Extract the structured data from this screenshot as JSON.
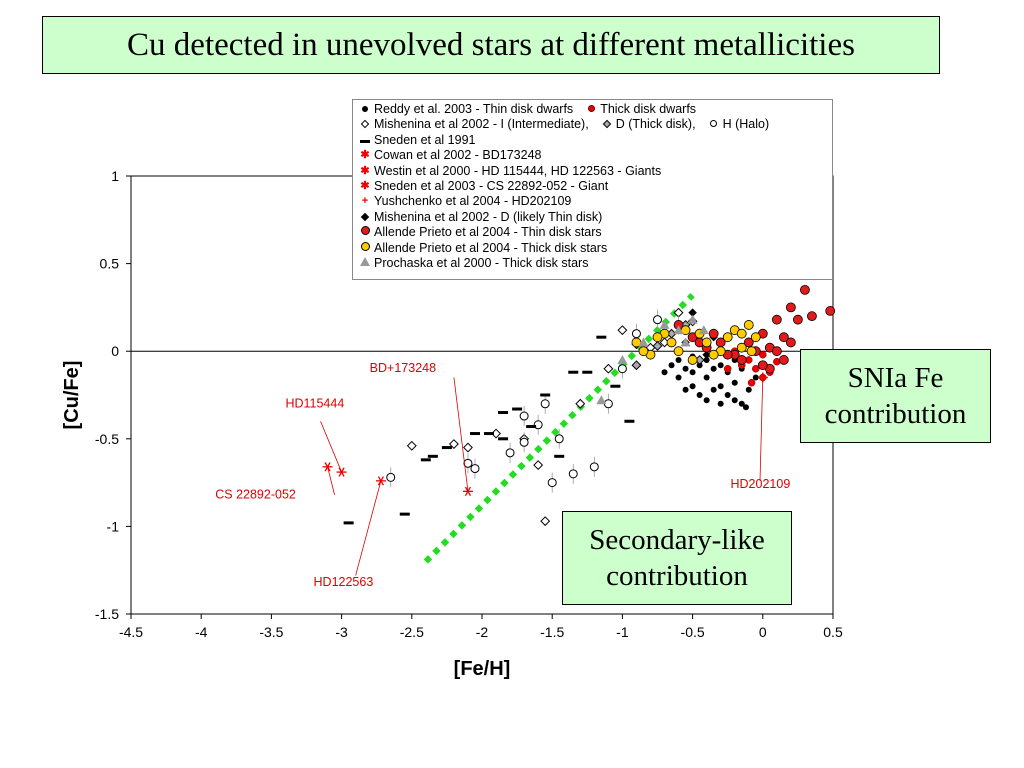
{
  "title": "Cu detected in unevolved stars at different metallicities",
  "notes": {
    "snia": [
      "SNIa Fe",
      "contribution"
    ],
    "secondary": [
      "Secondary-like",
      "contribution"
    ]
  },
  "legend": {
    "r1a": "Reddy et al. 2003 - Thin disk dwarfs",
    "r1b": "Thick disk dwarfs",
    "r2a": "Mishenina et al 2002 - I (Intermediate),",
    "r2b": "D (Thick disk),",
    "r2c": "H (Halo)",
    "r3": "Sneden et al 1991",
    "r4": "Cowan et al 2002 - BD173248",
    "r5": "Westin et al 2000 - HD 115444, HD 122563 - Giants",
    "r6": "Sneden et al 2003 - CS 22892-052 - Giant",
    "r7": "Yushchenko et al 2004 - HD202109",
    "r8": "Mishenina et al 2002 - D (likely Thin disk)",
    "r9": "Allende Prieto et al 2004 - Thin disk stars",
    "r10": "Allende Prieto et al 2004 - Thick disk stars",
    "r11": "Prochaska et al 2000 - Thick disk stars"
  },
  "colors": {
    "red": "#e31a1c",
    "label_red": "#e00000",
    "yellow": "#ffcc00",
    "green": "#22dd22",
    "gray": "#999999"
  },
  "chart_data": {
    "type": "scatter",
    "title": "",
    "xlabel": "[Fe/H]",
    "ylabel": "[Cu/Fe]",
    "xlim": [
      -4.5,
      0.5
    ],
    "ylim": [
      -1.5,
      1
    ],
    "xticks": [
      "-4.5",
      "-4",
      "-3.5",
      "-3",
      "-2.5",
      "-2",
      "-1.5",
      "-1",
      "-0.5",
      "0",
      "0.5"
    ],
    "yticks": [
      "-1.5",
      "-1",
      "-0.5",
      "0",
      "0.5",
      "1"
    ],
    "xtick_values": [
      -4.5,
      -4,
      -3.5,
      -3,
      -2.5,
      -2,
      -1.5,
      -1,
      -0.5,
      0,
      0.5
    ],
    "ytick_values": [
      -1.5,
      -1,
      -0.5,
      0,
      0.5,
      1
    ],
    "annotations": [
      {
        "text": "BD+173248",
        "x": -2.8,
        "y": -0.12
      },
      {
        "text": "HD115444",
        "x": -3.4,
        "y": -0.32
      },
      {
        "text": "CS 22892-052",
        "x": -3.9,
        "y": -0.84
      },
      {
        "text": "HD122563",
        "x": -3.2,
        "y": -1.34
      },
      {
        "text": "HD202109",
        "x": -0.23,
        "y": -0.78
      }
    ],
    "secondary_trend": {
      "x": [
        -2.4,
        -0.5
      ],
      "y": [
        -1.2,
        0.32
      ]
    },
    "series": [
      {
        "name": "Reddy et al. 2003 - Thin disk dwarfs",
        "marker": "black-dot",
        "points": [
          [
            -0.6,
            -0.05
          ],
          [
            -0.55,
            -0.1
          ],
          [
            -0.5,
            -0.12
          ],
          [
            -0.45,
            -0.08
          ],
          [
            -0.4,
            -0.15
          ],
          [
            -0.35,
            -0.1
          ],
          [
            -0.3,
            -0.2
          ],
          [
            -0.25,
            -0.12
          ],
          [
            -0.2,
            -0.18
          ],
          [
            -0.15,
            -0.1
          ],
          [
            -0.1,
            -0.22
          ],
          [
            -0.05,
            -0.15
          ],
          [
            -0.5,
            -0.2
          ],
          [
            -0.45,
            -0.25
          ],
          [
            -0.4,
            -0.05
          ],
          [
            -0.35,
            -0.22
          ],
          [
            -0.3,
            -0.08
          ],
          [
            -0.25,
            -0.25
          ],
          [
            -0.2,
            -0.05
          ],
          [
            -0.6,
            -0.15
          ],
          [
            -0.65,
            -0.08
          ],
          [
            -0.7,
            -0.12
          ],
          [
            -0.55,
            -0.22
          ],
          [
            -0.15,
            -0.3
          ],
          [
            -0.1,
            -0.05
          ],
          [
            -0.3,
            -0.3
          ],
          [
            -0.4,
            -0.28
          ],
          [
            -0.5,
            -0.03
          ],
          [
            -0.2,
            -0.28
          ],
          [
            -0.12,
            -0.32
          ]
        ]
      },
      {
        "name": "Thick disk dwarfs",
        "marker": "red-dot",
        "points": [
          [
            -0.1,
            -0.05
          ],
          [
            -0.05,
            -0.1
          ],
          [
            0,
            -0.02
          ],
          [
            0.05,
            -0.12
          ],
          [
            -0.15,
            -0.08
          ],
          [
            -0.2,
            0
          ],
          [
            0.1,
            -0.06
          ],
          [
            -0.08,
            -0.18
          ],
          [
            -0.25,
            -0.1
          ],
          [
            0,
            -0.15
          ]
        ]
      },
      {
        "name": "Mishenina et al 2002 - I (Intermediate)",
        "marker": "open-diamond",
        "points": [
          [
            -2.5,
            -0.54
          ],
          [
            -2.2,
            -0.53
          ],
          [
            -2.1,
            -0.55
          ],
          [
            -1.9,
            -0.47
          ],
          [
            -1.6,
            -0.65
          ],
          [
            -1.1,
            -0.1
          ],
          [
            -1.0,
            0.12
          ],
          [
            -0.9,
            0.04
          ],
          [
            -0.8,
            0.02
          ],
          [
            -0.7,
            0.05
          ],
          [
            -0.6,
            0.22
          ],
          [
            -0.5,
            0.17
          ],
          [
            -1.7,
            -0.5
          ],
          [
            -1.3,
            -0.3
          ],
          [
            -1.55,
            -0.97
          ]
        ]
      },
      {
        "name": "Mishenina et al 2002 - D (Thick disk)",
        "marker": "gray-diamond",
        "points": [
          [
            -0.9,
            -0.08
          ],
          [
            -0.75,
            0.03
          ],
          [
            -0.55,
            0.15
          ],
          [
            -0.65,
            0.1
          ],
          [
            -0.45,
            -0.05
          ]
        ]
      },
      {
        "name": "Mishenina et al 2002 - H (Halo)",
        "marker": "open-circle",
        "points": [
          [
            -2.1,
            -0.64
          ],
          [
            -2.05,
            -0.67
          ],
          [
            -1.8,
            -0.58
          ],
          [
            -1.7,
            -0.52
          ],
          [
            -1.7,
            -0.37
          ],
          [
            -1.6,
            -0.42
          ],
          [
            -1.55,
            -0.3
          ],
          [
            -1.5,
            -0.75
          ],
          [
            -1.45,
            -0.5
          ],
          [
            -1.35,
            -0.7
          ],
          [
            -1.2,
            -0.66
          ],
          [
            -1.1,
            -0.3
          ],
          [
            -1.0,
            -0.1
          ],
          [
            -0.9,
            0.1
          ],
          [
            -0.75,
            0.18
          ],
          [
            -0.6,
            0.15
          ],
          [
            -2.65,
            -0.72
          ]
        ]
      },
      {
        "name": "Sneden et al 1991",
        "marker": "dash",
        "points": [
          [
            -2.95,
            -0.98
          ],
          [
            -2.55,
            -0.93
          ],
          [
            -2.35,
            -0.6
          ],
          [
            -2.25,
            -0.55
          ],
          [
            -2.05,
            -0.47
          ],
          [
            -1.95,
            -0.47
          ],
          [
            -1.85,
            -0.5
          ],
          [
            -1.75,
            -0.33
          ],
          [
            -1.65,
            -0.43
          ],
          [
            -1.55,
            -0.25
          ],
          [
            -1.45,
            -0.6
          ],
          [
            -1.35,
            -0.12
          ],
          [
            -1.25,
            -0.12
          ],
          [
            -1.15,
            0.08
          ],
          [
            -1.05,
            -0.2
          ],
          [
            -0.95,
            -0.4
          ],
          [
            -2.4,
            -0.62
          ],
          [
            -1.85,
            -0.35
          ]
        ]
      },
      {
        "name": "Cowan et al 2002 - BD173248",
        "marker": "red-star",
        "points": [
          [
            -2.1,
            -0.8
          ]
        ]
      },
      {
        "name": "Westin et al 2000 - HD 115444, HD 122563 - Giants",
        "marker": "red-star",
        "points": [
          [
            -3.0,
            -0.69
          ],
          [
            -2.72,
            -0.74
          ]
        ]
      },
      {
        "name": "Sneden et al 2003 - CS 22892-052 - Giant",
        "marker": "red-star",
        "points": [
          [
            -3.1,
            -0.66
          ]
        ]
      },
      {
        "name": "Yushchenko et al 2004 - HD202109",
        "marker": "red-plus",
        "points": [
          [
            0.0,
            -0.15
          ]
        ]
      },
      {
        "name": "Mishenina et al 2002 - D (likely Thin disk)",
        "marker": "black-diamond",
        "points": [
          [
            -0.5,
            0.22
          ],
          [
            -0.45,
            0.1
          ],
          [
            -0.55,
            0.05
          ],
          [
            -0.4,
            -0.02
          ],
          [
            -0.35,
            0.08
          ]
        ]
      },
      {
        "name": "Allende Prieto et al 2004 - Thin disk stars",
        "marker": "red-circle",
        "points": [
          [
            -0.6,
            0.15
          ],
          [
            -0.5,
            0.08
          ],
          [
            -0.4,
            0.02
          ],
          [
            -0.3,
            0.05
          ],
          [
            -0.2,
            -0.02
          ],
          [
            -0.1,
            0.05
          ],
          [
            0,
            0.1
          ],
          [
            0.05,
            0.02
          ],
          [
            0.1,
            0.18
          ],
          [
            0.15,
            0.08
          ],
          [
            0.2,
            0.25
          ],
          [
            0.25,
            0.18
          ],
          [
            0.3,
            0.35
          ],
          [
            0.48,
            0.23
          ],
          [
            0.35,
            0.2
          ],
          [
            0.2,
            0.05
          ],
          [
            0.1,
            0.0
          ],
          [
            -0.15,
            -0.05
          ],
          [
            -0.25,
            -0.02
          ],
          [
            0.05,
            -0.1
          ],
          [
            0.15,
            -0.05
          ],
          [
            0.0,
            -0.08
          ],
          [
            -0.05,
            0.0
          ],
          [
            -0.35,
            0.1
          ],
          [
            -0.45,
            0.05
          ]
        ]
      },
      {
        "name": "Allende Prieto et al 2004 - Thick disk stars",
        "marker": "yellow-circle",
        "points": [
          [
            -0.9,
            0.05
          ],
          [
            -0.8,
            -0.02
          ],
          [
            -0.7,
            0.1
          ],
          [
            -0.6,
            0.0
          ],
          [
            -0.5,
            -0.05
          ],
          [
            -0.4,
            0.05
          ],
          [
            -0.3,
            0.0
          ],
          [
            -0.2,
            0.12
          ],
          [
            -0.15,
            0.02
          ],
          [
            -0.1,
            0.15
          ],
          [
            -0.05,
            0.08
          ],
          [
            -0.25,
            0.08
          ],
          [
            -0.35,
            -0.02
          ],
          [
            -0.45,
            0.1
          ],
          [
            -0.55,
            0.12
          ],
          [
            -0.65,
            0.05
          ],
          [
            -0.75,
            0.08
          ],
          [
            -0.85,
            0.0
          ],
          [
            -0.15,
            0.1
          ],
          [
            -0.08,
            0.0
          ]
        ]
      },
      {
        "name": "Prochaska et al 2000 - Thick disk stars",
        "marker": "gray-triangle",
        "points": [
          [
            -1.15,
            -0.28
          ],
          [
            -1.0,
            -0.05
          ],
          [
            -0.85,
            0.05
          ],
          [
            -0.6,
            0.12
          ],
          [
            -0.5,
            0.18
          ],
          [
            -0.42,
            0.12
          ],
          [
            -0.7,
            0.15
          ],
          [
            -0.55,
            0.05
          ]
        ]
      }
    ]
  }
}
